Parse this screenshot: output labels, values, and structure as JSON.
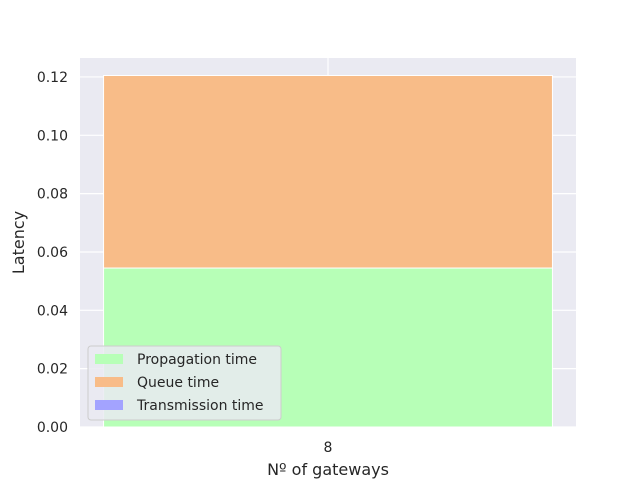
{
  "chart_data": {
    "type": "bar",
    "stacked": true,
    "categories": [
      "8"
    ],
    "xlabel": "Nº of gateways",
    "ylabel": "Latency",
    "ylim": [
      0,
      0.1265
    ],
    "yticks": [
      "0.00",
      "0.02",
      "0.04",
      "0.06",
      "0.08",
      "0.10",
      "0.12"
    ],
    "grid": true,
    "legend_position": "lower-left",
    "series": [
      {
        "name": "Propagation time",
        "values": [
          0.0545
        ],
        "color": "#b7ffb7"
      },
      {
        "name": "Queue time",
        "values": [
          0.066
        ],
        "color": "#f8bc88"
      },
      {
        "name": "Transmission time",
        "values": [
          0.0
        ],
        "color": "#a3a3ff"
      }
    ]
  },
  "colors": {
    "plot_background": "#eaeaf2",
    "grid": "#ffffff",
    "text": "#262626"
  }
}
